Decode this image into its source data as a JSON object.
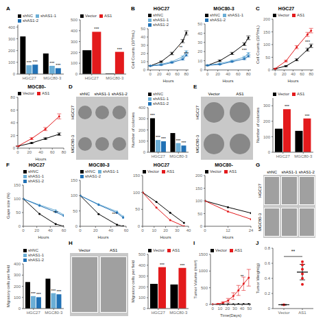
{
  "chart_data": [
    {
      "type": "bar",
      "panel_label": "A",
      "categories": [
        "HGC27",
        "MGC80-3"
      ],
      "series": [
        {
          "name": "shNC",
          "color": "#000000",
          "values": [
            320,
            175
          ]
        },
        {
          "name": "shAS1-1",
          "color": "#6baed6",
          "values": [
            75,
            70
          ]
        },
        {
          "name": "shAS1-2",
          "color": "#2171b5",
          "values": [
            80,
            50
          ]
        }
      ],
      "ylim": [
        0,
        420
      ],
      "yticks": [
        0,
        100,
        200,
        300,
        400
      ],
      "annotations": [
        {
          "text": "***",
          "series": "shAS1-1",
          "category": "HGC27"
        },
        {
          "text": "***",
          "series": "shAS1-2",
          "category": "HGC27"
        },
        {
          "text": "***",
          "series": "shAS1-1",
          "category": "MGC80-3"
        },
        {
          "text": "***",
          "series": "shAS1-2",
          "category": "MGC80-3"
        }
      ]
    },
    {
      "type": "bar",
      "categories": [
        "HGC27",
        "MGC80-3"
      ],
      "series": [
        {
          "name": "Vector",
          "color": "#000000",
          "values": [
            220,
            5
          ]
        },
        {
          "name": "AS1",
          "color": "#e31a1c",
          "values": [
            390,
            205
          ]
        }
      ],
      "ylim": [
        0,
        500
      ],
      "yticks": [
        0,
        100,
        200,
        300,
        400,
        500
      ],
      "annotations": [
        {
          "text": "***",
          "series": "AS1",
          "category": "HGC27"
        },
        {
          "text": "***",
          "series": "AS1",
          "category": "MGC80-3"
        }
      ]
    },
    {
      "type": "line",
      "panel_label": "B",
      "title": "HGC27",
      "xlabel": "Hours",
      "ylabel": "Cell Counts (10⁴/mL)",
      "x": [
        0,
        24,
        48,
        72,
        80
      ],
      "series": [
        {
          "name": "shNC",
          "color": "#000000",
          "values": [
            5,
            10,
            20,
            35,
            45
          ],
          "errors": [
            0.3,
            0.8,
            1.5,
            2.0,
            2.5
          ]
        },
        {
          "name": "shAS1-1",
          "color": "#6baed6",
          "values": [
            5,
            7,
            10,
            16,
            22
          ],
          "errors": [
            0.3,
            0.5,
            0.8,
            1.0,
            1.5
          ]
        },
        {
          "name": "shAS1-2",
          "color": "#2171b5",
          "values": [
            5,
            6,
            9,
            13,
            18
          ],
          "errors": [
            0.3,
            0.4,
            0.7,
            0.9,
            1.2
          ]
        }
      ],
      "marker": "o",
      "xlim": [
        -5,
        85
      ],
      "xticks": [
        0,
        20,
        40,
        60,
        80
      ],
      "ylim": [
        0,
        50
      ],
      "yticks": [
        0,
        10,
        20,
        30,
        40,
        50
      ],
      "annotations": [
        {
          "text": "**",
          "x": 68,
          "y": 28
        },
        {
          "text": "***",
          "x": 80,
          "y": 20
        }
      ]
    },
    {
      "type": "line",
      "title": "MGC80-3",
      "xlabel": "Hours",
      "x": [
        0,
        24,
        48,
        72,
        80
      ],
      "series": [
        {
          "name": "shNC",
          "color": "#000000",
          "values": [
            5,
            10,
            18,
            28,
            35
          ],
          "errors": [
            0.3,
            0.8,
            1.2,
            1.5,
            2.0
          ]
        },
        {
          "name": "shAS1-1",
          "color": "#6baed6",
          "values": [
            5,
            7,
            10,
            14,
            18
          ],
          "errors": [
            0.3,
            0.5,
            0.7,
            0.9,
            1.0
          ]
        },
        {
          "name": "shAS1-2",
          "color": "#2171b5",
          "values": [
            5,
            6,
            9,
            12,
            15
          ],
          "errors": [
            0.3,
            0.4,
            0.6,
            0.8,
            0.9
          ]
        }
      ],
      "marker": "o",
      "xlim": [
        -5,
        85
      ],
      "xticks": [
        0,
        20,
        40,
        60,
        80
      ],
      "ylim": [
        0,
        50
      ],
      "yticks": [
        0,
        10,
        20,
        30,
        40,
        50
      ],
      "annotations": [
        {
          "text": "***",
          "x": 72,
          "y": 22
        }
      ]
    },
    {
      "type": "line",
      "panel_label": "C",
      "title": "HGC27",
      "xlabel": "Hours",
      "ylabel": "Cell Counts (10⁴/mL)",
      "x": [
        0,
        24,
        48,
        72,
        80
      ],
      "series": [
        {
          "name": "Vector",
          "color": "#000000",
          "values": [
            5,
            15,
            40,
            80,
            95
          ],
          "errors": [
            0.5,
            2,
            4,
            6,
            7
          ]
        },
        {
          "name": "AS1",
          "color": "#e31a1c",
          "values": [
            5,
            35,
            90,
            140,
            155
          ],
          "errors": [
            0.5,
            3,
            6,
            8,
            9
          ]
        }
      ],
      "marker": "o",
      "xlim": [
        -5,
        85
      ],
      "xticks": [
        0,
        20,
        40,
        60,
        80
      ],
      "ylim": [
        0,
        200
      ],
      "yticks": [
        0,
        50,
        100,
        150,
        200
      ],
      "annotations": [
        {
          "text": "***",
          "x": 72,
          "y": 110
        }
      ]
    },
    {
      "type": "line",
      "title": "MGC80-",
      "xlabel": "Hours",
      "x": [
        0,
        24,
        48,
        72
      ],
      "series": [
        {
          "name": "Vector",
          "color": "#000000",
          "values": [
            3,
            8,
            15,
            22
          ],
          "errors": [
            0.3,
            1,
            1.5,
            2
          ]
        },
        {
          "name": "AS1",
          "color": "#e31a1c",
          "values": [
            3,
            15,
            30,
            50
          ],
          "errors": [
            0.3,
            1.5,
            2.5,
            4
          ]
        }
      ],
      "marker": "o",
      "xlim": [
        0,
        80
      ],
      "xticks": [
        0,
        20,
        40,
        60,
        80
      ],
      "ylim": [
        0,
        80
      ],
      "yticks": [
        0,
        20,
        40,
        60,
        80
      ]
    },
    {
      "type": "image",
      "panel_label": "D",
      "categories": [
        "shNC",
        "shAS1-1",
        "shAS1-2"
      ],
      "rows": [
        "HGC27",
        "MGC80-3"
      ],
      "marker": "circle"
    },
    {
      "type": "bar",
      "categories": [
        "HGC27",
        "MGC80-3"
      ],
      "ylabel": "Number of colonies",
      "series": [
        {
          "name": "shNC",
          "color": "#000000",
          "values": [
            305,
            172
          ]
        },
        {
          "name": "shAS1-1",
          "color": "#6baed6",
          "values": [
            110,
            82
          ]
        },
        {
          "name": "shAS1-2",
          "color": "#2171b5",
          "values": [
            98,
            60
          ]
        }
      ],
      "ylim": [
        0,
        400
      ],
      "yticks": [
        0,
        100,
        200,
        300,
        400
      ],
      "annotations": [
        {
          "text": "***",
          "series": "shAS1-1",
          "category": "HGC27"
        },
        {
          "text": "***",
          "series": "shAS1-2",
          "category": "HGC27"
        },
        {
          "text": "***",
          "series": "shAS1-1",
          "category": "MGC80-3"
        },
        {
          "text": "***",
          "series": "shAS1-2",
          "category": "MGC80-3"
        },
        {
          "text": "***",
          "series": "shNC",
          "category": "HGC27"
        }
      ]
    },
    {
      "type": "image",
      "panel_label": "E",
      "categories": [
        "Vector",
        "AS1"
      ],
      "rows": [
        "HGC27",
        "MGC80-3"
      ],
      "marker": "circle"
    },
    {
      "type": "bar",
      "categories": [
        "HGC27",
        "MGC80-3"
      ],
      "ylabel": "Number of colonies",
      "series": [
        {
          "name": "Vector",
          "color": "#000000",
          "values": [
            152,
            138
          ]
        },
        {
          "name": "AS1",
          "color": "#e31a1c",
          "values": [
            278,
            218
          ]
        }
      ],
      "ylim": [
        0,
        350
      ],
      "yticks": [
        0,
        100,
        200,
        300
      ],
      "annotations": [
        {
          "text": "***",
          "series": "AS1",
          "category": "HGC27"
        },
        {
          "text": "***",
          "series": "AS1",
          "category": "MGC80-3"
        }
      ]
    },
    {
      "type": "line",
      "panel_label": "F",
      "title": "HGC27",
      "xlabel": "Hours",
      "ylabel": "Gape size (%)",
      "x": [
        0,
        24,
        48,
        60
      ],
      "series": [
        {
          "name": "shNC",
          "color": "#000000",
          "values": [
            100,
            45,
            8,
            0
          ]
        },
        {
          "name": "shAS1-1",
          "color": "#6baed6",
          "values": [
            100,
            78,
            58,
            42
          ]
        },
        {
          "name": "shAS1-2",
          "color": "#2171b5",
          "values": [
            100,
            75,
            52,
            38
          ]
        }
      ],
      "marker": "o",
      "xlim": [
        0,
        60
      ],
      "xticks": [
        0,
        20,
        40,
        60
      ],
      "ylim": [
        0,
        150
      ],
      "yticks": [
        0,
        50,
        100,
        150
      ],
      "annotations": [
        {
          "text": "***",
          "x": 48,
          "y": 50
        }
      ]
    },
    {
      "type": "line",
      "title": "MGC80-3",
      "xlabel": "Hours",
      "x": [
        0,
        24,
        48,
        56
      ],
      "series": [
        {
          "name": "shNC",
          "color": "#000000",
          "values": [
            100,
            40,
            5,
            0
          ]
        },
        {
          "name": "shAS1-1",
          "color": "#6baed6",
          "values": [
            100,
            72,
            48,
            32
          ]
        },
        {
          "name": "shAS1-2",
          "color": "#2171b5",
          "values": [
            100,
            70,
            44,
            28
          ]
        }
      ],
      "marker": "o",
      "xlim": [
        0,
        60
      ],
      "xticks": [
        0,
        20,
        40,
        60
      ],
      "ylim": [
        0,
        150
      ],
      "yticks": [
        0,
        50,
        100,
        150
      ],
      "annotations": [
        {
          "text": "***",
          "x": 44.8,
          "y": 40
        }
      ]
    },
    {
      "type": "line",
      "title": "HGC27",
      "xlabel": "Hours",
      "x": [
        0,
        12,
        24,
        36
      ],
      "series": [
        {
          "name": "Vector",
          "color": "#000000",
          "values": [
            100,
            72,
            40,
            10
          ]
        },
        {
          "name": "AS1",
          "color": "#e31a1c",
          "values": [
            100,
            55,
            18,
            0
          ]
        }
      ],
      "marker": "o",
      "xlim": [
        0,
        40
      ],
      "xticks": [
        0,
        10,
        20,
        30,
        40
      ],
      "ylim": [
        0,
        150
      ],
      "yticks": [
        0,
        50,
        100,
        150
      ]
    },
    {
      "type": "line",
      "title": "MGC80-",
      "xlabel": "Hours",
      "x": [
        0,
        12,
        24
      ],
      "series": [
        {
          "name": "Vector",
          "color": "#000000",
          "values": [
            100,
            75,
            52
          ]
        },
        {
          "name": "AS1",
          "color": "#e31a1c",
          "values": [
            100,
            58,
            28
          ]
        }
      ],
      "marker": "o",
      "xlim": [
        0,
        24
      ],
      "xticks": [
        0,
        12,
        24
      ],
      "ylim": [
        0,
        200
      ],
      "yticks": [
        0,
        50,
        100,
        150,
        200
      ]
    },
    {
      "type": "image",
      "panel_label": "G",
      "categories": [
        "shNC",
        "shAS1-1",
        "shAS1-2"
      ],
      "rows": [
        "HGC27",
        "MGC80-3"
      ],
      "marker": "square"
    },
    {
      "type": "bar",
      "categories": [
        "HGC27",
        "MGC80-3"
      ],
      "ylabel": "Migratory cells per field",
      "series": [
        {
          "name": "shNC",
          "color": "#000000",
          "values": [
            238,
            268
          ]
        },
        {
          "name": "shAS1-1",
          "color": "#6baed6",
          "values": [
            112,
            138
          ]
        },
        {
          "name": "shAS1-2",
          "color": "#2171b5",
          "values": [
            102,
            128
          ]
        }
      ],
      "ylim": [
        0,
        400
      ],
      "yticks": [
        0,
        100,
        200,
        300,
        400
      ],
      "annotations": [
        {
          "text": "***",
          "series": "shAS1-1",
          "category": "HGC27"
        },
        {
          "text": "***",
          "series": "shAS1-2",
          "category": "HGC27"
        },
        {
          "text": "***",
          "series": "shAS1-1",
          "category": "MGC80-3"
        },
        {
          "text": "***",
          "series": "shAS1-2",
          "category": "MGC80-3"
        }
      ]
    },
    {
      "type": "image",
      "panel_label": "H",
      "categories": [
        "Vector",
        "AS1"
      ],
      "marker": "square"
    },
    {
      "type": "bar",
      "categories": [
        "HGC27",
        "MGC80-3"
      ],
      "ylabel": "Migratory cells per field",
      "series": [
        {
          "name": "Vector",
          "color": "#000000",
          "values": [
            228,
            222
          ]
        },
        {
          "name": "AS1",
          "color": "#e31a1c",
          "values": [
            382,
            375
          ]
        }
      ],
      "ylim": [
        0,
        500
      ],
      "yticks": [
        0,
        100,
        200,
        300,
        400,
        500
      ],
      "annotations": [
        {
          "text": "***",
          "series": "AS1",
          "category": "HGC27"
        },
        {
          "text": "***",
          "series": "AS1",
          "category": "MGC80-3"
        }
      ]
    },
    {
      "type": "line",
      "panel_label": "I",
      "xlabel": "Time(Days)",
      "ylabel": "Tumor Volume (mm³)",
      "x": [
        0,
        7,
        14,
        21,
        28,
        35,
        42,
        49
      ],
      "series": [
        {
          "name": "Vector",
          "color": "#000000",
          "values": [
            0,
            2,
            3,
            5,
            5,
            8,
            10,
            12
          ],
          "errors": [
            0,
            1,
            1,
            2,
            2,
            3,
            3,
            4
          ]
        },
        {
          "name": "AS1",
          "color": "#e31a1c",
          "values": [
            0,
            15,
            50,
            120,
            250,
            420,
            620,
            800
          ],
          "errors": [
            0,
            10,
            30,
            60,
            100,
            150,
            200,
            250
          ]
        }
      ],
      "marker": "o",
      "xlim": [
        -3,
        52
      ],
      "xticks": [
        0,
        10,
        20,
        30,
        40,
        50
      ],
      "ylim": [
        0,
        1500
      ],
      "yticks": [
        0,
        500,
        1000,
        1500
      ],
      "annotations": [
        {
          "text": "**",
          "x": 40,
          "y": 850
        }
      ]
    },
    {
      "type": "scatter",
      "panel_label": "J",
      "categories": [
        "Vector",
        "AS1"
      ],
      "ylabel": "Tumor Weight(g)",
      "color": "#e31a1c",
      "values": [
        [
          0.05
        ],
        [
          0.32,
          0.4,
          0.46,
          0.52,
          0.58,
          0.62
        ]
      ],
      "means": [
        0.05,
        0.4833333333
      ],
      "errors": [
        0.005,
        0.1029024
      ],
      "ylim": [
        0,
        0.8
      ],
      "yticks": [
        0,
        0.2,
        0.4,
        0.6,
        0.8
      ],
      "annotations": [
        {
          "text": "**",
          "from": "Vector",
          "to": "AS1",
          "y": 0.69
        }
      ]
    }
  ]
}
